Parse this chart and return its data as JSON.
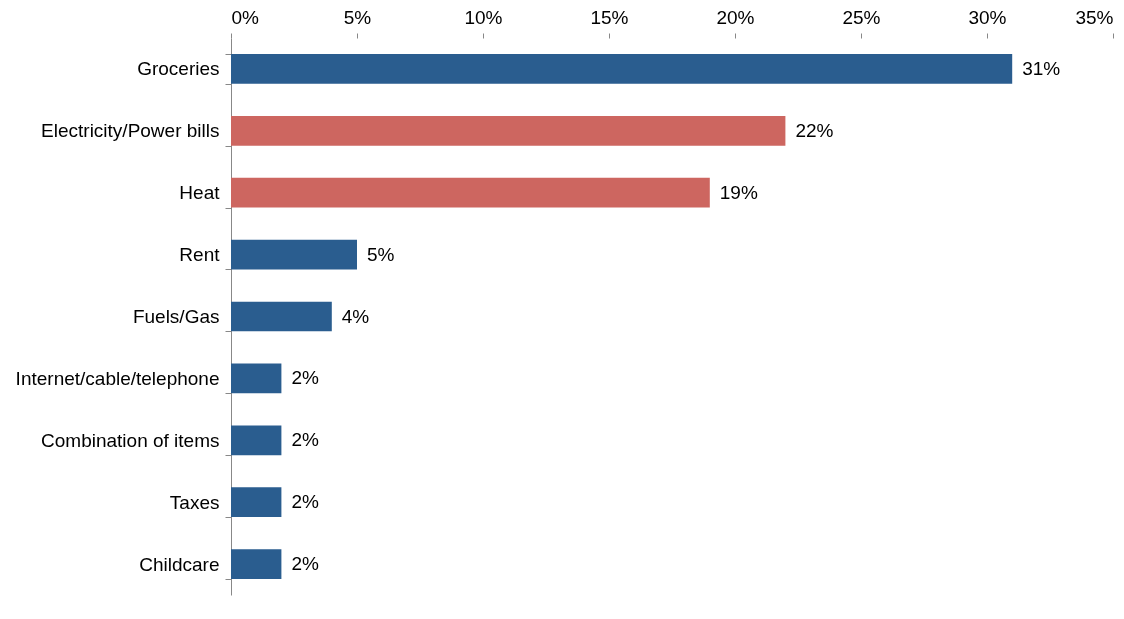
{
  "chart_data": {
    "type": "bar",
    "orientation": "horizontal",
    "categories": [
      "Groceries",
      "Electricity/Power bills",
      "Heat",
      "Rent",
      "Fuels/Gas",
      "Internet/cable/telephone",
      "Combination of items",
      "Taxes",
      "Childcare"
    ],
    "values": [
      31,
      22,
      19,
      5,
      4,
      2,
      2,
      2,
      2
    ],
    "colors": [
      "#2a5d8f",
      "#cd6660",
      "#cd6660",
      "#2a5d8f",
      "#2a5d8f",
      "#2a5d8f",
      "#2a5d8f",
      "#2a5d8f",
      "#2a5d8f"
    ],
    "value_labels": [
      "31%",
      "22%",
      "19%",
      "5%",
      "4%",
      "2%",
      "2%",
      "2%",
      "2%"
    ],
    "xlim": [
      0,
      35
    ],
    "xticks": [
      {
        "value": 0,
        "label": "0%"
      },
      {
        "value": 5,
        "label": "5%"
      },
      {
        "value": 10,
        "label": "10%"
      },
      {
        "value": 15,
        "label": "15%"
      },
      {
        "value": 20,
        "label": "20%"
      },
      {
        "value": 25,
        "label": "25%"
      },
      {
        "value": 30,
        "label": "30%"
      },
      {
        "value": 35,
        "label": "35%"
      }
    ],
    "grid": false
  }
}
